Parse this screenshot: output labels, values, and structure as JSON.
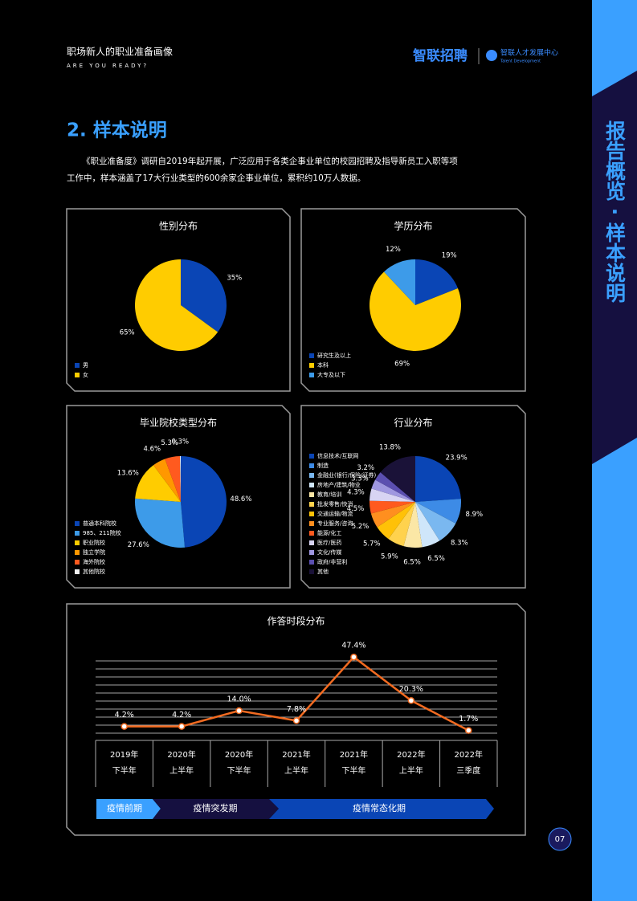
{
  "header": {
    "title": "职场新人的职业准备画像",
    "subtitle": "ARE YOU READY?",
    "logo": "智联招聘",
    "logo2": "智联人才发展中心",
    "logo2_sub": "Talent Development"
  },
  "side_tab": "报告概览 · 样本说明",
  "section_title": "2. 样本说明",
  "intro": [
    "《职业准备度》调研自2019年起开展，广泛应用于各类企事业单位的校园招聘及指导新员工入职等项",
    "工作中，样本涵盖了17大行业类型的600余家企事业单位，累积约10万人数据。"
  ],
  "page_number": "07",
  "chart_data": [
    {
      "type": "pie",
      "title": "性别分布",
      "categories": [
        "男",
        "女"
      ],
      "values": [
        35,
        65
      ],
      "value_labels": [
        "35%",
        "65%"
      ],
      "colors": [
        "#0a45b5",
        "#ffcc00"
      ]
    },
    {
      "type": "pie",
      "title": "学历分布",
      "categories": [
        "研究生及以上",
        "本科",
        "大专及以下"
      ],
      "values": [
        19,
        69,
        12
      ],
      "value_labels": [
        "19%",
        "69%",
        "12%"
      ],
      "colors": [
        "#0a45b5",
        "#ffcc00",
        "#3d9be9"
      ]
    },
    {
      "type": "pie",
      "title": "毕业院校类型分布",
      "categories": [
        "普通本科院校",
        "985、211院校",
        "职业院校",
        "独立学院",
        "海外院校",
        "其他院校"
      ],
      "values": [
        48.6,
        27.6,
        13.6,
        4.6,
        5.3,
        0.3
      ],
      "value_labels": [
        "48.6%",
        "27.6%",
        "13.6%",
        "4.6%",
        "5.3%",
        "0.3%"
      ],
      "colors": [
        "#0a45b5",
        "#3d9be9",
        "#ffcc00",
        "#ff9800",
        "#ff5a1f",
        "#f0f0f0"
      ]
    },
    {
      "type": "pie",
      "title": "行业分布",
      "categories": [
        "信息技术/互联网",
        "制造",
        "金融业(银行/保险/证券)",
        "房地产/建筑/物业",
        "教育/培训",
        "批发零售/快消",
        "交通运输/物流",
        "专业服务/咨询",
        "能源/化工",
        "医疗/医药",
        "文化/传媒",
        "政府/非营利",
        "其他"
      ],
      "values": [
        23.9,
        8.9,
        8.3,
        6.5,
        6.5,
        5.9,
        5.7,
        5.2,
        4.5,
        4.3,
        3.3,
        3.2,
        13.8
      ],
      "value_labels": [
        "23.9%",
        "8.9%",
        "8.3%",
        "6.5%",
        "6.5%",
        "5.9%",
        "5.7%",
        "5.2%",
        "4.5%",
        "4.3%",
        "3.3%",
        "3.2%",
        "13.8%"
      ],
      "colors": [
        "#0a45b5",
        "#3d8be6",
        "#7ab8f0",
        "#cfe6fa",
        "#fbe7a6",
        "#ffd24d",
        "#ffc107",
        "#ff8f1f",
        "#ff5a1f",
        "#d8d4f3",
        "#9f97e0",
        "#5b4fb0",
        "#1a1238"
      ]
    },
    {
      "type": "line",
      "title": "作答时段分布",
      "categories": [
        [
          "2019年",
          "下半年"
        ],
        [
          "2020年",
          "上半年"
        ],
        [
          "2020年",
          "下半年"
        ],
        [
          "2021年",
          "上半年"
        ],
        [
          "2021年",
          "下半年"
        ],
        [
          "2022年",
          "上半年"
        ],
        [
          "2022年",
          "三季度"
        ]
      ],
      "values": [
        4.2,
        4.2,
        14.0,
        7.8,
        47.4,
        20.3,
        1.7
      ],
      "value_labels": [
        "4.2%",
        "4.2%",
        "14.0%",
        "7.8%",
        "47.4%",
        "20.3%",
        "1.7%"
      ],
      "color": "#f26b21",
      "ylim": [
        0,
        48
      ],
      "yticks": [
        0,
        5,
        10,
        15,
        20,
        25,
        30,
        35,
        40,
        45
      ],
      "grid": true,
      "phases": [
        "疫情前期",
        "疫情突发期",
        "疫情常态化期"
      ]
    }
  ]
}
